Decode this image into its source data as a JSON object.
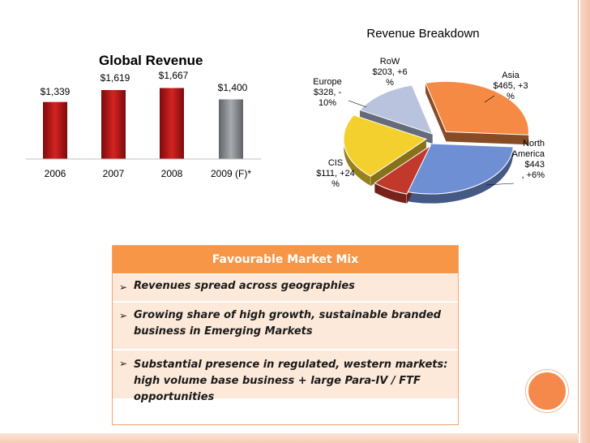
{
  "chart_data": [
    {
      "type": "bar",
      "title": "Global Revenue",
      "categories": [
        "2006",
        "2007",
        "2008",
        "2009 (F)*"
      ],
      "values": [
        1339,
        1619,
        1667,
        1400
      ],
      "value_labels": [
        "$1,339",
        "$1,619",
        "$1,667",
        "$1,400"
      ],
      "colors": [
        "#b01818",
        "#b01818",
        "#b01818",
        "#8c8c8c"
      ],
      "xlabel": "",
      "ylabel": ""
    },
    {
      "type": "pie",
      "title": "Revenue Breakdown",
      "slices": [
        {
          "name": "North America",
          "value": 443,
          "growth": "+6%",
          "label_lines": [
            "North",
            "America",
            "$443",
            ", +6%"
          ],
          "color": "#6e8fd4"
        },
        {
          "name": "CIS",
          "value": 111,
          "growth": "+24%",
          "label_lines": [
            "CIS",
            "$111, +24",
            "%"
          ],
          "color": "#c0392b"
        },
        {
          "name": "Europe",
          "value": 328,
          "growth": "-10%",
          "label_lines": [
            "Europe",
            "$328, -",
            "10%"
          ],
          "color": "#f3d02e"
        },
        {
          "name": "RoW",
          "value": 203,
          "growth": "+6%",
          "label_lines": [
            "RoW",
            "$203, +6",
            "%"
          ],
          "color": "#b9c3de"
        },
        {
          "name": "Asia",
          "value": 465,
          "growth": "+3%",
          "label_lines": [
            "Asia",
            "$465, +3",
            "%"
          ],
          "color": "#f58a44"
        }
      ]
    }
  ],
  "table": {
    "header": "Favourable Market Mix",
    "rows": [
      "Revenues spread across geographies",
      "Growing share of high growth, sustainable branded business in Emerging Markets",
      "Substantial presence in regulated, western markets: high volume base business + large Para-IV / FTF opportunities"
    ],
    "bullet_glyph": "➢"
  }
}
